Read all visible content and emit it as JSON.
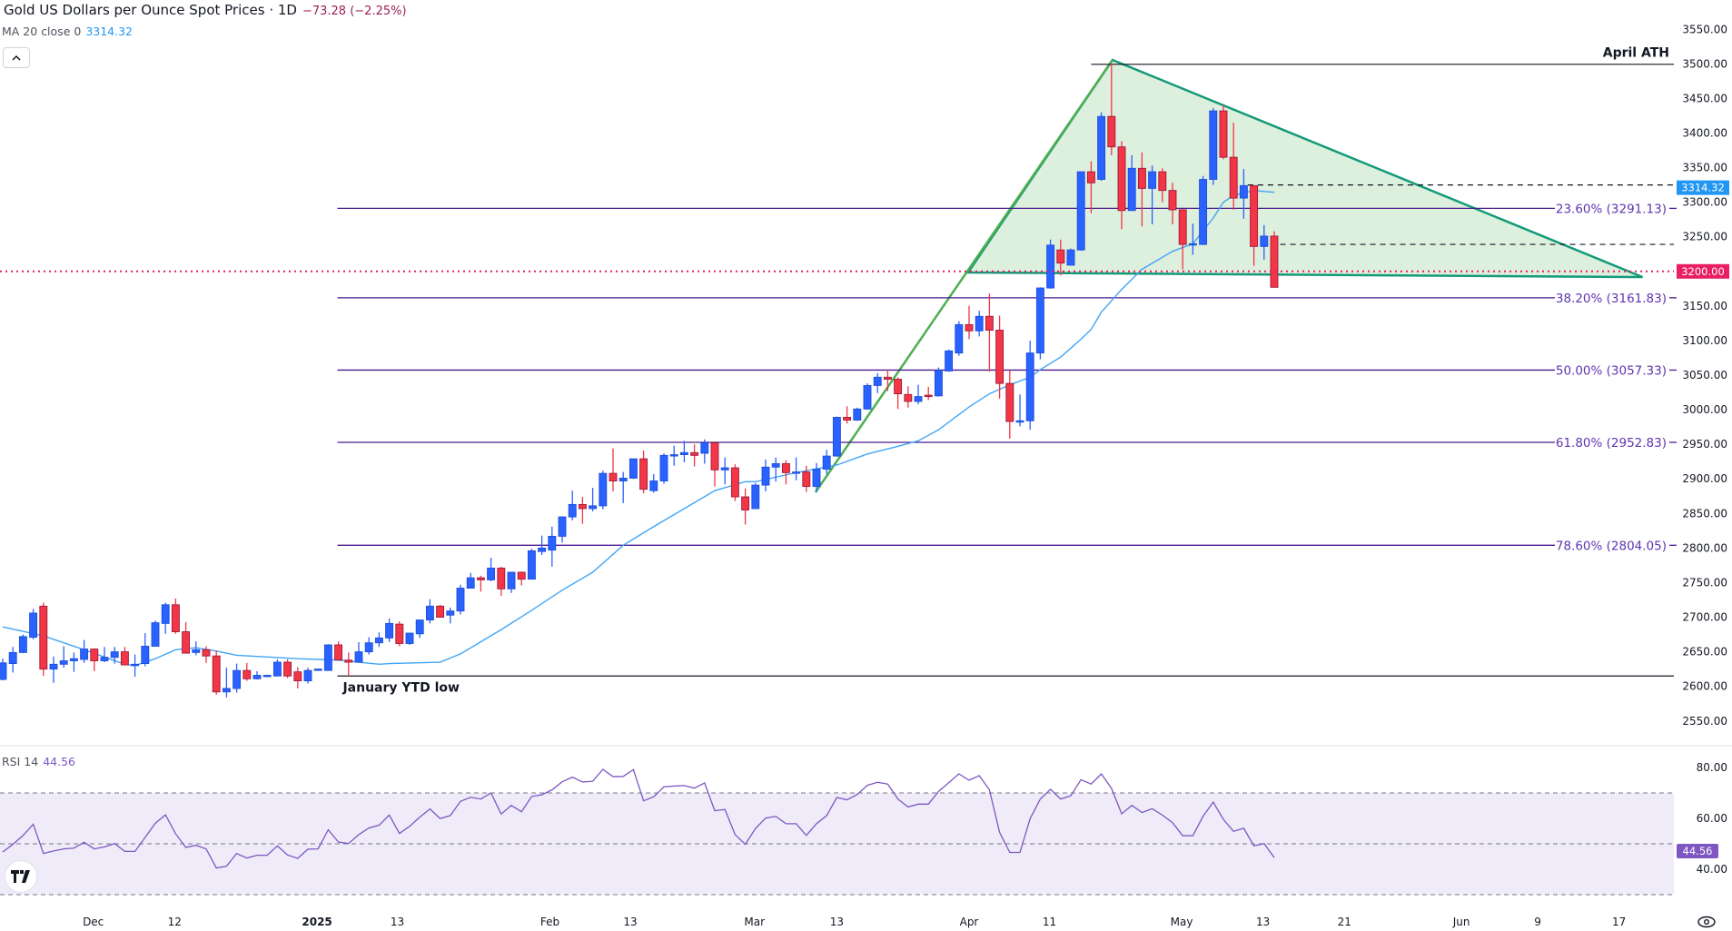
{
  "header": {
    "title": "Gold US Dollars per Ounce Spot Prices · 1D",
    "change": "−73.28 (−2.25%)",
    "ma_label": "MA 20 close 0",
    "ma_value": "3314.32",
    "collapse_icon": "chevron-up-icon"
  },
  "rsi_legend": {
    "label": "RSI 14",
    "value": "44.56"
  },
  "logo": {
    "text": "TV"
  },
  "colors": {
    "up": "#2962ff",
    "up_border": "#1e4fd8",
    "down": "#f23645",
    "down_border": "#9c1b3f",
    "ma": "#42a5f5",
    "fib": "#4a1a8c",
    "fib_text": "#5e35b1",
    "rsi": "#7e57c2",
    "rsi_band": "#efebf8",
    "triangle_line": "#139a7a",
    "triangle_fill": "#dbeedb",
    "price_tag_ma": "#2196f3",
    "price_tag_level": "#e91e63"
  },
  "chart_data": {
    "type": "candlestick",
    "title": "Gold US Dollars per Ounce Spot Prices · 1D",
    "price_axis": {
      "ticks": [
        "3550.00",
        "3500.00",
        "3450.00",
        "3400.00",
        "3350.00",
        "3300.00",
        "3250.00",
        "3200.00",
        "3150.00",
        "3100.00",
        "3050.00",
        "3000.00",
        "2950.00",
        "2900.00",
        "2850.00",
        "2800.00",
        "2750.00",
        "2700.00",
        "2650.00",
        "2600.00",
        "2550.00"
      ],
      "range": [
        2514,
        3594
      ]
    },
    "x_ticks": [
      {
        "label": "Dec",
        "index": 8.9
      },
      {
        "label": "12",
        "index": 16.9
      },
      {
        "label": "2025",
        "index": 30.9,
        "bold": true
      },
      {
        "label": "13",
        "index": 38.8
      },
      {
        "label": "Feb",
        "index": 53.8
      },
      {
        "label": "13",
        "index": 61.7
      },
      {
        "label": "Mar",
        "index": 73.9
      },
      {
        "label": "13",
        "index": 82.0
      },
      {
        "label": "Apr",
        "index": 95.0
      },
      {
        "label": "11",
        "index": 102.9
      },
      {
        "label": "May",
        "index": 115.9
      },
      {
        "label": "13",
        "index": 123.9
      },
      {
        "label": "21",
        "index": 131.9
      },
      {
        "label": "Jun",
        "index": 143.4
      },
      {
        "label": "9",
        "index": 150.9
      },
      {
        "label": "17",
        "index": 158.9
      }
    ],
    "candles_ohlc": [
      [
        2610,
        2640,
        2609,
        2634
      ],
      [
        2633,
        2657,
        2620,
        2649
      ],
      [
        2649,
        2675,
        2648,
        2672
      ],
      [
        2671,
        2712,
        2668,
        2706
      ],
      [
        2716,
        2721,
        2615,
        2625
      ],
      [
        2625,
        2643,
        2605,
        2632
      ],
      [
        2632,
        2658,
        2627,
        2637
      ],
      [
        2637,
        2649,
        2621,
        2640
      ],
      [
        2639,
        2667,
        2634,
        2654
      ],
      [
        2654,
        2655,
        2622,
        2637
      ],
      [
        2637,
        2657,
        2635,
        2642
      ],
      [
        2642,
        2657,
        2633,
        2650
      ],
      [
        2650,
        2657,
        2631,
        2631
      ],
      [
        2631,
        2646,
        2614,
        2632
      ],
      [
        2633,
        2677,
        2629,
        2658
      ],
      [
        2658,
        2695,
        2658,
        2692
      ],
      [
        2691,
        2721,
        2676,
        2718
      ],
      [
        2718,
        2727,
        2676,
        2679
      ],
      [
        2679,
        2693,
        2648,
        2648
      ],
      [
        2649,
        2665,
        2645,
        2653
      ],
      [
        2653,
        2658,
        2634,
        2644
      ],
      [
        2644,
        2652,
        2588,
        2592
      ],
      [
        2592,
        2627,
        2584,
        2597
      ],
      [
        2597,
        2633,
        2591,
        2623
      ],
      [
        2623,
        2634,
        2608,
        2611
      ],
      [
        2611,
        2622,
        2610,
        2616
      ],
      [
        2616,
        2617,
        2615,
        2616
      ],
      [
        2615,
        2639,
        2615,
        2635
      ],
      [
        2635,
        2639,
        2612,
        2615
      ],
      [
        2621,
        2628,
        2597,
        2608
      ],
      [
        2608,
        2627,
        2604,
        2623
      ],
      [
        2624,
        2626,
        2623,
        2625
      ],
      [
        2623,
        2661,
        2623,
        2660
      ],
      [
        2660,
        2665,
        2638,
        2638
      ],
      [
        2638,
        2649,
        2615,
        2635
      ],
      [
        2635,
        2664,
        2634,
        2650
      ],
      [
        2650,
        2671,
        2646,
        2663
      ],
      [
        2663,
        2678,
        2657,
        2670
      ],
      [
        2670,
        2698,
        2664,
        2691
      ],
      [
        2690,
        2694,
        2658,
        2662
      ],
      [
        2662,
        2677,
        2660,
        2677
      ],
      [
        2676,
        2696,
        2670,
        2696
      ],
      [
        2696,
        2726,
        2691,
        2716
      ],
      [
        2716,
        2718,
        2700,
        2700
      ],
      [
        2703,
        2714,
        2691,
        2709
      ],
      [
        2709,
        2747,
        2704,
        2742
      ],
      [
        2742,
        2764,
        2742,
        2757
      ],
      [
        2757,
        2760,
        2737,
        2754
      ],
      [
        2754,
        2786,
        2752,
        2771
      ],
      [
        2771,
        2773,
        2731,
        2741
      ],
      [
        2741,
        2765,
        2735,
        2765
      ],
      [
        2765,
        2766,
        2746,
        2755
      ],
      [
        2755,
        2799,
        2755,
        2796
      ],
      [
        2795,
        2818,
        2790,
        2800
      ],
      [
        2797,
        2831,
        2773,
        2817
      ],
      [
        2817,
        2846,
        2808,
        2845
      ],
      [
        2845,
        2883,
        2840,
        2863
      ],
      [
        2863,
        2874,
        2835,
        2857
      ],
      [
        2857,
        2887,
        2853,
        2861
      ],
      [
        2861,
        2912,
        2856,
        2908
      ],
      [
        2908,
        2944,
        2882,
        2897
      ],
      [
        2897,
        2910,
        2865,
        2901
      ],
      [
        2901,
        2929,
        2900,
        2929
      ],
      [
        2929,
        2941,
        2879,
        2885
      ],
      [
        2883,
        2907,
        2880,
        2897
      ],
      [
        2897,
        2937,
        2893,
        2934
      ],
      [
        2934,
        2948,
        2919,
        2935
      ],
      [
        2935,
        2955,
        2924,
        2938
      ],
      [
        2938,
        2950,
        2918,
        2934
      ],
      [
        2937,
        2957,
        2922,
        2952
      ],
      [
        2952,
        2954,
        2889,
        2913
      ],
      [
        2913,
        2931,
        2892,
        2916
      ],
      [
        2916,
        2921,
        2868,
        2874
      ],
      [
        2874,
        2886,
        2834,
        2855
      ],
      [
        2857,
        2894,
        2857,
        2891
      ],
      [
        2891,
        2928,
        2882,
        2917
      ],
      [
        2917,
        2931,
        2896,
        2922
      ],
      [
        2922,
        2927,
        2892,
        2909
      ],
      [
        2909,
        2931,
        2898,
        2910
      ],
      [
        2910,
        2919,
        2881,
        2889
      ],
      [
        2889,
        2923,
        2881,
        2914
      ],
      [
        2914,
        2942,
        2907,
        2933
      ],
      [
        2933,
        2990,
        2932,
        2989
      ],
      [
        2989,
        3005,
        2980,
        2985
      ],
      [
        2985,
        3003,
        2984,
        3001
      ],
      [
        3001,
        3038,
        3000,
        3035
      ],
      [
        3035,
        3053,
        3024,
        3047
      ],
      [
        3047,
        3058,
        3027,
        3044
      ],
      [
        3044,
        3047,
        3001,
        3023
      ],
      [
        3022,
        3034,
        3003,
        3012
      ],
      [
        3012,
        3036,
        3008,
        3019
      ],
      [
        3021,
        3033,
        3014,
        3020
      ],
      [
        3020,
        3061,
        3019,
        3057
      ],
      [
        3056,
        3087,
        3055,
        3085
      ],
      [
        3082,
        3128,
        3078,
        3123
      ],
      [
        3123,
        3150,
        3102,
        3114
      ],
      [
        3114,
        3143,
        3106,
        3135
      ],
      [
        3135,
        3168,
        3055,
        3115
      ],
      [
        3115,
        3136,
        3016,
        3038
      ],
      [
        3038,
        3057,
        2958,
        2983
      ],
      [
        2983,
        3022,
        2976,
        2984
      ],
      [
        2984,
        3100,
        2971,
        3082
      ],
      [
        3082,
        3177,
        3073,
        3176
      ],
      [
        3176,
        3246,
        3175,
        3238
      ],
      [
        3231,
        3246,
        3194,
        3212
      ],
      [
        3209,
        3233,
        3209,
        3231
      ],
      [
        3231,
        3344,
        3230,
        3344
      ],
      [
        3344,
        3359,
        3284,
        3328
      ],
      [
        3333,
        3430,
        3331,
        3424
      ],
      [
        3424,
        3500,
        3368,
        3380
      ],
      [
        3380,
        3388,
        3261,
        3288
      ],
      [
        3288,
        3368,
        3288,
        3349
      ],
      [
        3349,
        3372,
        3265,
        3320
      ],
      [
        3320,
        3353,
        3268,
        3344
      ],
      [
        3344,
        3349,
        3300,
        3317
      ],
      [
        3317,
        3328,
        3268,
        3289
      ],
      [
        3289,
        3290,
        3203,
        3239
      ],
      [
        3239,
        3269,
        3224,
        3240
      ],
      [
        3239,
        3338,
        3238,
        3333
      ],
      [
        3333,
        3436,
        3325,
        3432
      ],
      [
        3432,
        3440,
        3362,
        3365
      ],
      [
        3365,
        3415,
        3289,
        3306
      ],
      [
        3306,
        3348,
        3276,
        3324
      ],
      [
        3324,
        3324,
        3208,
        3236
      ],
      [
        3236,
        3267,
        3217,
        3251
      ],
      [
        3251,
        3258,
        3177,
        3177
      ]
    ],
    "ma20": [
      [
        0,
        2686
      ],
      [
        4,
        2673
      ],
      [
        8,
        2653
      ],
      [
        12,
        2632
      ],
      [
        13,
        2630
      ],
      [
        15,
        2640
      ],
      [
        17,
        2653
      ],
      [
        19,
        2656
      ],
      [
        21,
        2651
      ],
      [
        23,
        2645
      ],
      [
        29,
        2640
      ],
      [
        33,
        2638
      ],
      [
        35,
        2635
      ],
      [
        37,
        2632
      ],
      [
        38,
        2633
      ],
      [
        43,
        2635
      ],
      [
        45,
        2647
      ],
      [
        49,
        2682
      ],
      [
        52,
        2710
      ],
      [
        55,
        2739
      ],
      [
        58,
        2765
      ],
      [
        61,
        2804
      ],
      [
        64,
        2831
      ],
      [
        67,
        2857
      ],
      [
        70,
        2883
      ],
      [
        73,
        2896
      ],
      [
        74,
        2896
      ],
      [
        78,
        2909
      ],
      [
        82,
        2920
      ],
      [
        85,
        2936
      ],
      [
        88,
        2947
      ],
      [
        90,
        2955
      ],
      [
        92,
        2971
      ],
      [
        95,
        3004
      ],
      [
        97,
        3023
      ],
      [
        99,
        3036
      ],
      [
        101,
        3047
      ],
      [
        102,
        3058
      ],
      [
        104,
        3076
      ],
      [
        106,
        3102
      ],
      [
        107,
        3116
      ],
      [
        108,
        3141
      ],
      [
        110,
        3174
      ],
      [
        112,
        3203
      ],
      [
        115,
        3229
      ],
      [
        117,
        3240
      ],
      [
        119,
        3277
      ],
      [
        120,
        3300
      ],
      [
        121,
        3310
      ],
      [
        123,
        3317
      ],
      [
        125,
        3314.32
      ]
    ],
    "rsi": {
      "period": 14,
      "levels": [
        70,
        50,
        30
      ],
      "axis_ticks": [
        "80.00",
        "60.00",
        "40.00"
      ],
      "values": [
        46.8,
        49.8,
        53.3,
        57.7,
        46.2,
        47.2,
        48.0,
        48.3,
        50.6,
        48.0,
        48.8,
        50.1,
        47.0,
        47.0,
        52.5,
        58.1,
        61.4,
        53.9,
        48.6,
        49.4,
        48.0,
        40.5,
        41.2,
        46.2,
        44.4,
        45.5,
        45.5,
        49.2,
        45.6,
        44.3,
        47.9,
        48.0,
        55.5,
        50.7,
        50.1,
        53.6,
        56.2,
        57.3,
        61.3,
        54.1,
        56.9,
        60.5,
        63.7,
        59.9,
        61.1,
        66.7,
        68.3,
        67.6,
        70.0,
        61.7,
        65.1,
        62.6,
        68.6,
        69.3,
        71.2,
        74.4,
        76.2,
        74.3,
        74.6,
        79.3,
        76.4,
        76.5,
        79.2,
        66.9,
        68.5,
        72.4,
        72.7,
        72.9,
        71.9,
        73.9,
        63.0,
        63.5,
        53.6,
        49.8,
        56.0,
        60.1,
        60.8,
        57.9,
        57.9,
        53.3,
        57.9,
        61.1,
        68.2,
        67.3,
        69.4,
        73.0,
        74.2,
        73.5,
        67.6,
        64.5,
        65.6,
        65.6,
        70.6,
        74.0,
        77.5,
        75.0,
        76.8,
        71.2,
        54.5,
        46.6,
        46.6,
        59.9,
        67.6,
        71.4,
        67.6,
        68.9,
        75.2,
        73.5,
        77.5,
        71.8,
        61.8,
        65.1,
        62.3,
        63.8,
        61.3,
        58.3,
        53.2,
        53.2,
        60.8,
        66.4,
        59.6,
        54.9,
        56.1,
        49.2,
        50.1,
        44.56
      ]
    },
    "annotations": {
      "ath": {
        "label": "April ATH",
        "price": 3500,
        "from_index": 107
      },
      "ytd_low": {
        "label": "January YTD low",
        "price": 2615,
        "from_index": 32.9
      },
      "fib_from_index": 32.9,
      "fib_levels": [
        {
          "label": "23.60% (3291.13)",
          "price": 3291.13
        },
        {
          "label": "38.20% (3161.83)",
          "price": 3161.83
        },
        {
          "label": "50.00% (3057.33)",
          "price": 3057.33
        },
        {
          "label": "61.80% (2952.83)",
          "price": 2952.83
        },
        {
          "label": "78.60% (2804.05)",
          "price": 2804.05
        }
      ],
      "dashed_levels": [
        {
          "price": 3325,
          "from_index": 122.4
        },
        {
          "price": 3239,
          "from_index": 124.6
        }
      ],
      "level_line": {
        "price": 3200,
        "tag": "3200.00"
      },
      "ma_tag": "3314.32",
      "rsi_tag": "44.56",
      "triangle": [
        [
          94.9,
          3198.4
        ],
        [
          109.1,
          3505.7
        ],
        [
          161.2,
          3191.8
        ]
      ],
      "trendline": [
        [
          79.9,
          2880.6
        ],
        [
          109.1,
          3505.7
        ]
      ]
    }
  }
}
